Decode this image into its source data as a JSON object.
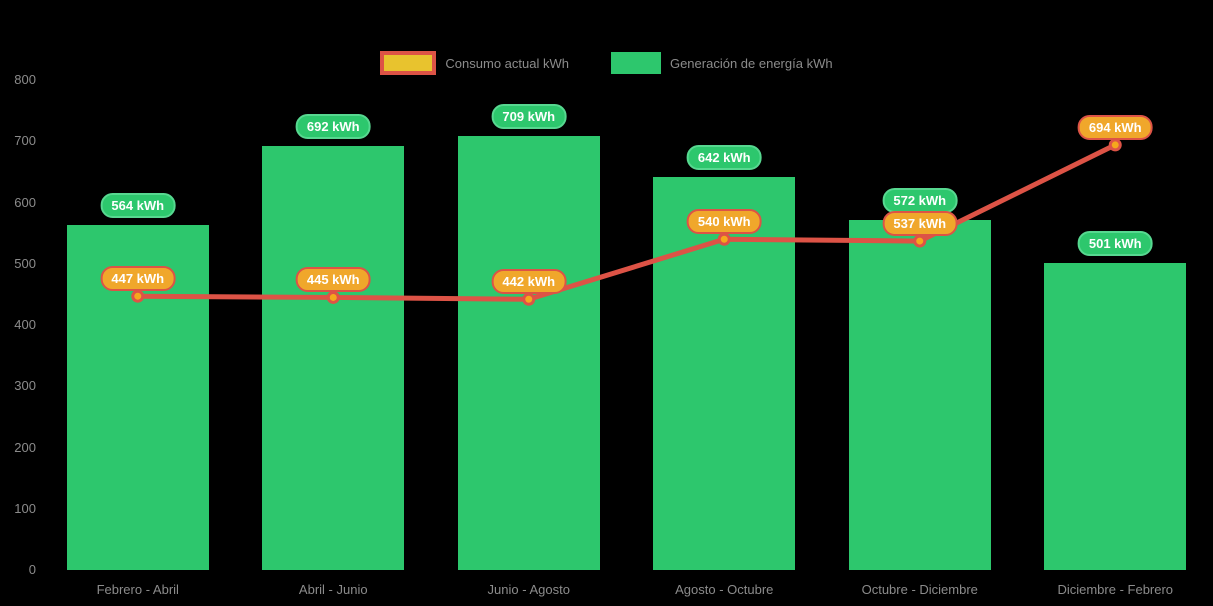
{
  "legend": {
    "items": [
      {
        "label": "Consumo actual kWh",
        "swatch": "line",
        "fill": "#e8c32e",
        "border": "#dd5346"
      },
      {
        "label": "Generación de energía kWh",
        "swatch": "bar",
        "fill": "#2dc76d",
        "border": "#2dc76d"
      }
    ]
  },
  "chart_data": {
    "type": "bar",
    "categories": [
      "Febrero - Abril",
      "Abril - Junio",
      "Junio - Agosto",
      "Agosto - Octubre",
      "Octubre - Diciembre",
      "Diciembre - Febrero"
    ],
    "series": [
      {
        "name": "Generación de energía kWh",
        "type": "bar",
        "values": [
          564,
          692,
          709,
          642,
          572,
          501
        ],
        "labels": [
          "564 kWh",
          "692 kWh",
          "709 kWh",
          "642 kWh",
          "572 kWh",
          "501 kWh"
        ],
        "color": "#2dc76d",
        "label_fill": "#2dc76d",
        "label_border": "#57d890"
      },
      {
        "name": "Consumo actual kWh",
        "type": "line",
        "values": [
          447,
          445,
          442,
          540,
          537,
          694
        ],
        "labels": [
          "447 kWh",
          "445 kWh",
          "442 kWh",
          "540 kWh",
          "537 kWh",
          "694 kWh"
        ],
        "color": "#dd5346",
        "marker_fill": "#f5a81c",
        "label_fill": "#f0a72b",
        "label_border": "#dd5346"
      }
    ],
    "value_suffix": "kWh",
    "ylim": [
      0,
      800
    ],
    "yticks": [
      0,
      100,
      200,
      300,
      400,
      500,
      600,
      700,
      800
    ],
    "grid": false,
    "legend_position": "top",
    "axis_text_color": "#8b8b8b",
    "background": "#000000"
  }
}
